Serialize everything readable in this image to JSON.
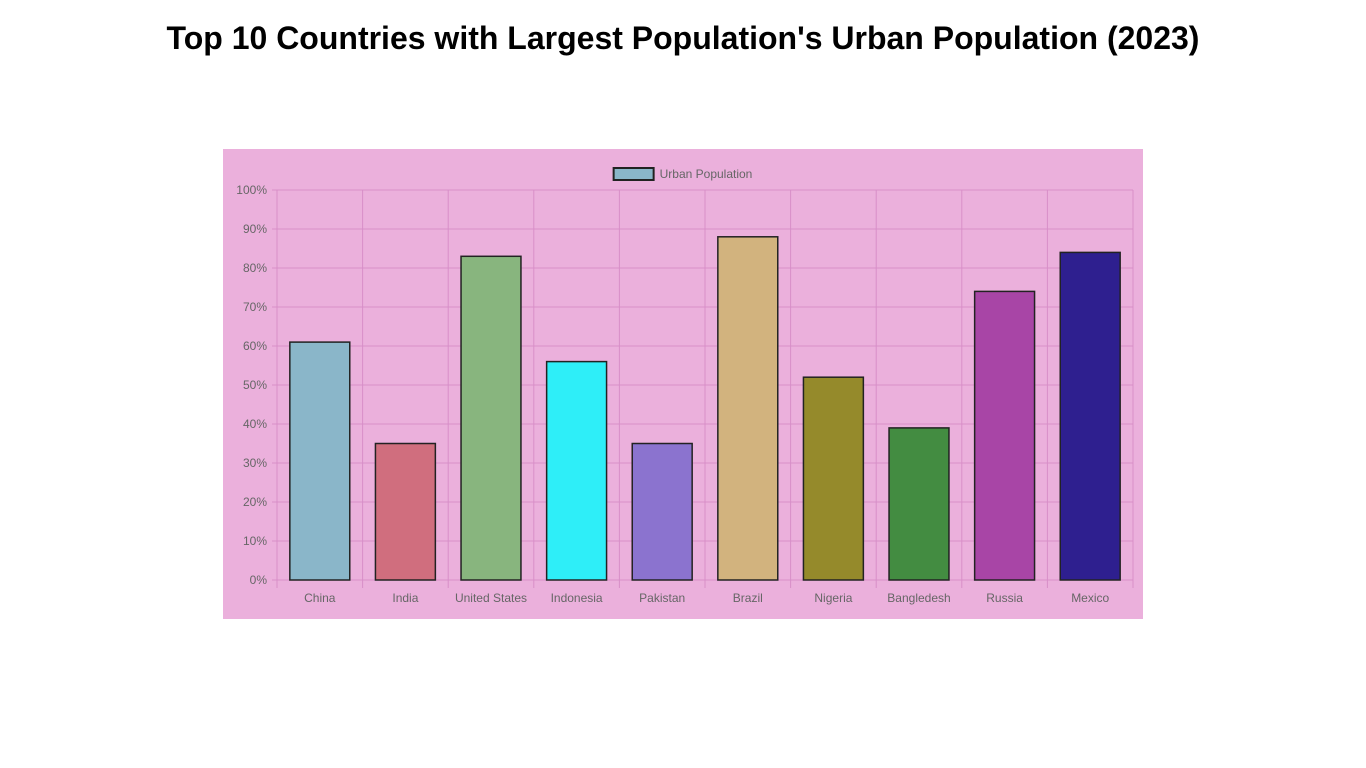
{
  "page": {
    "title": "Top 10 Countries with Largest Population's Urban Population (2023)"
  },
  "chart_data": {
    "type": "bar",
    "title": "Top 10 Countries with Largest Population's Urban Population (2023)",
    "xlabel": "",
    "ylabel": "",
    "categories": [
      "China",
      "India",
      "United States",
      "Indonesia",
      "Pakistan",
      "Brazil",
      "Nigeria",
      "Bangledesh",
      "Russia",
      "Mexico"
    ],
    "series": [
      {
        "name": "Urban Population",
        "values": [
          61,
          35,
          83,
          56,
          35,
          88,
          52,
          39,
          74,
          84
        ],
        "colors": [
          "#8AB6C9",
          "#D06E7E",
          "#88B57E",
          "#2EEEF8",
          "#8B73CF",
          "#D2B37E",
          "#958A2B",
          "#438C41",
          "#A845A6",
          "#2E1F8F"
        ],
        "border_color": "#222222"
      }
    ],
    "ylim": [
      0,
      100
    ],
    "y_ticks": [
      "0%",
      "10%",
      "20%",
      "30%",
      "40%",
      "50%",
      "60%",
      "70%",
      "80%",
      "90%",
      "100%"
    ],
    "grid": true,
    "legend": {
      "position": "top",
      "label": "Urban Population",
      "swatch_color": "#8AB6C9"
    },
    "background_color": "#EBB0DC",
    "grid_color": "#D88FC8"
  }
}
